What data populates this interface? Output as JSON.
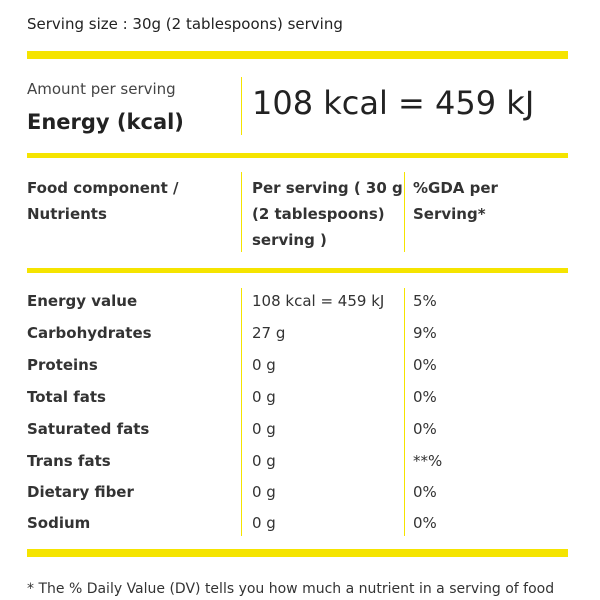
{
  "serving_size": "Serving size : 30g (2 tablespoons) serving",
  "energy": {
    "amount_label": "Amount per serving",
    "label": "Energy (kcal)",
    "value": "108 kcal = 459 kJ"
  },
  "table": {
    "headers": {
      "component_line1": "Food component /",
      "component_line2": "Nutrients",
      "per_serving_line1": "Per serving ( 30 g",
      "per_serving_line2": "(2 tablespoons)",
      "per_serving_line3": "serving )",
      "gda_line1": "%GDA per",
      "gda_line2": "Serving*"
    },
    "rows": [
      {
        "name": "Energy value",
        "value": "108 kcal = 459 kJ",
        "gda": "5%"
      },
      {
        "name": "Carbohydrates",
        "value": "27 g",
        "gda": "9%"
      },
      {
        "name": "Proteins",
        "value": "0 g",
        "gda": "0%"
      },
      {
        "name": "Total fats",
        "value": "0 g",
        "gda": "0%"
      },
      {
        "name": "Saturated fats",
        "value": "0 g",
        "gda": "0%"
      },
      {
        "name": "Trans fats",
        "value": "0 g",
        "gda": "**%"
      },
      {
        "name": "Dietary fiber",
        "value": "0 g",
        "gda": "0%"
      },
      {
        "name": "Sodium",
        "value": "0 g",
        "gda": "0%"
      }
    ]
  },
  "footnote": "* The % Daily Value (DV) tells you how much a nutrient in a serving of food",
  "colors": {
    "accent": "#f5e400",
    "text": "#222222"
  }
}
